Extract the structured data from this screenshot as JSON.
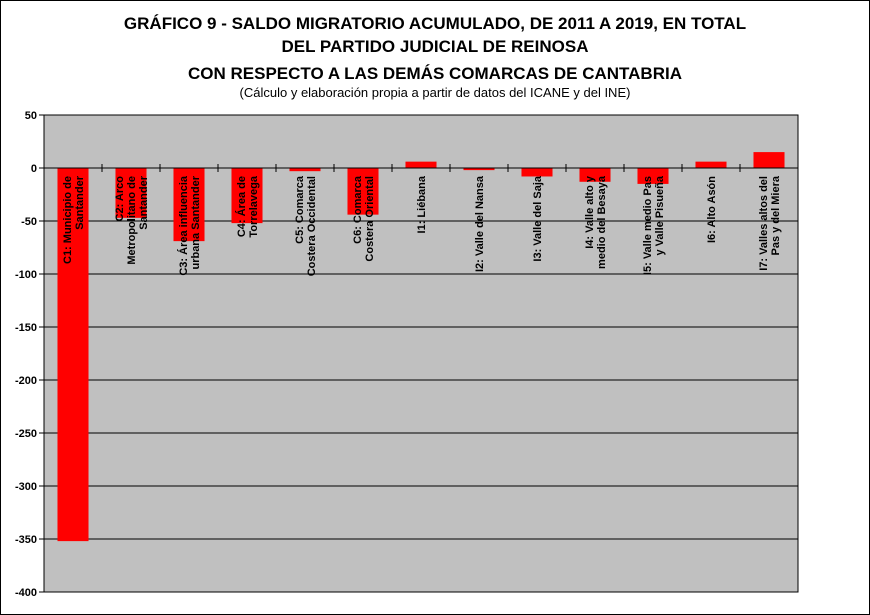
{
  "title_lines": [
    "GRÁFICO 9 - SALDO MIGRATORIO ACUMULADO, DE 2011 A 2019, EN TOTAL",
    "DEL PARTIDO JUDICIAL DE REINOSA",
    "CON RESPECTO A LAS DEMÁS COMARCAS DE CANTABRIA"
  ],
  "subtitle": "(Cálculo y elaboración propia a partir de datos del ICANE y del INE)",
  "colors": {
    "bar": "#ff0000",
    "plot_bg": "#c0c0c0",
    "grid": "#000000"
  },
  "chart_data": {
    "type": "bar",
    "title": "GRÁFICO 9 - SALDO MIGRATORIO ACUMULADO, DE 2011 A 2019, EN TOTAL DEL PARTIDO JUDICIAL DE REINOSA CON RESPECTO A LAS DEMÁS COMARCAS DE CANTABRIA",
    "subtitle": "(Cálculo y elaboración propia a partir de datos del ICANE y del INE)",
    "xlabel": "",
    "ylabel": "",
    "ylim": [
      -400,
      50
    ],
    "yticks": [
      50,
      0,
      -50,
      -100,
      -150,
      -200,
      -250,
      -300,
      -350,
      -400
    ],
    "grid": true,
    "legend": "none",
    "categories": [
      [
        "C1: Municipio de",
        "Santander"
      ],
      [
        "C2: Arco",
        "Metropolitano de",
        "Santander"
      ],
      [
        "C3: Área influencia",
        "urbana Santander"
      ],
      [
        "C4: Área de",
        "Torrelavega"
      ],
      [
        "C5: Comarca",
        "Costera Occidental"
      ],
      [
        "C6: Comarca",
        "Costera Oriental"
      ],
      [
        "I1: Liébana"
      ],
      [
        "I2: Valle del Nansa"
      ],
      [
        "I3: Valle del Saja"
      ],
      [
        "I4: Valle alto y",
        "medio del Besaya"
      ],
      [
        "I5: Valle medio Pas",
        "y Valle Pisueña"
      ],
      [
        "I6: Alto Asón"
      ],
      [
        "I7: Valles altos del",
        "Pas y del Miera"
      ]
    ],
    "values": [
      -352,
      -47,
      -69,
      -52,
      -3,
      -44,
      6,
      -2,
      -8,
      -13,
      -15,
      6,
      15
    ]
  }
}
